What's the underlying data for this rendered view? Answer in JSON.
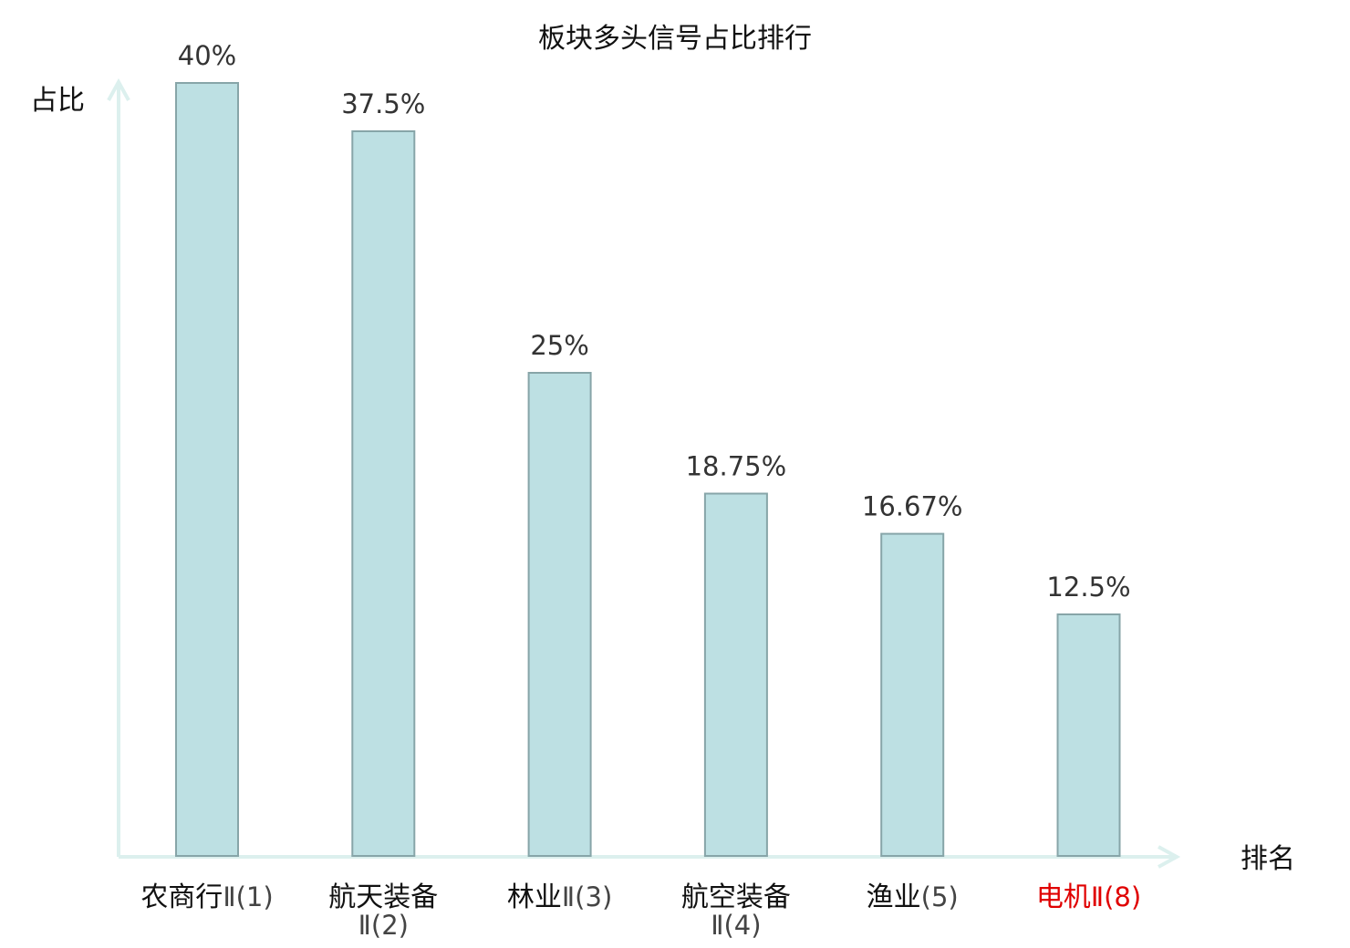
{
  "chart_data": {
    "type": "bar",
    "title": "板块多头信号占比排行",
    "xlabel": "排名",
    "ylabel": "占比",
    "categories": [
      {
        "name": "农商行",
        "suffix": "Ⅱ(1)",
        "highlight": false
      },
      {
        "name": "航天装备",
        "suffix": "Ⅱ(2)",
        "highlight": false
      },
      {
        "name": "林业",
        "suffix": "Ⅱ(3)",
        "highlight": false
      },
      {
        "name": "航空装备",
        "suffix": "Ⅱ(4)",
        "highlight": false
      },
      {
        "name": "渔业",
        "suffix": "(5)",
        "highlight": false
      },
      {
        "name": "电机",
        "suffix": "Ⅱ(8)",
        "highlight": true
      }
    ],
    "values": [
      40,
      37.5,
      25,
      18.75,
      16.67,
      12.5
    ],
    "value_labels": [
      "40%",
      "37.5%",
      "25%",
      "18.75%",
      "16.67%",
      "12.5%"
    ],
    "ylim": [
      0,
      40
    ],
    "grid": false,
    "legend": "none"
  },
  "colors": {
    "bar_fill": "#bde0e3",
    "bar_stroke": "#87a5a8",
    "axis": "#dcf0ee",
    "label_normal": "#111111",
    "label_suffix": "#444444",
    "label_highlight": "#e00000"
  }
}
